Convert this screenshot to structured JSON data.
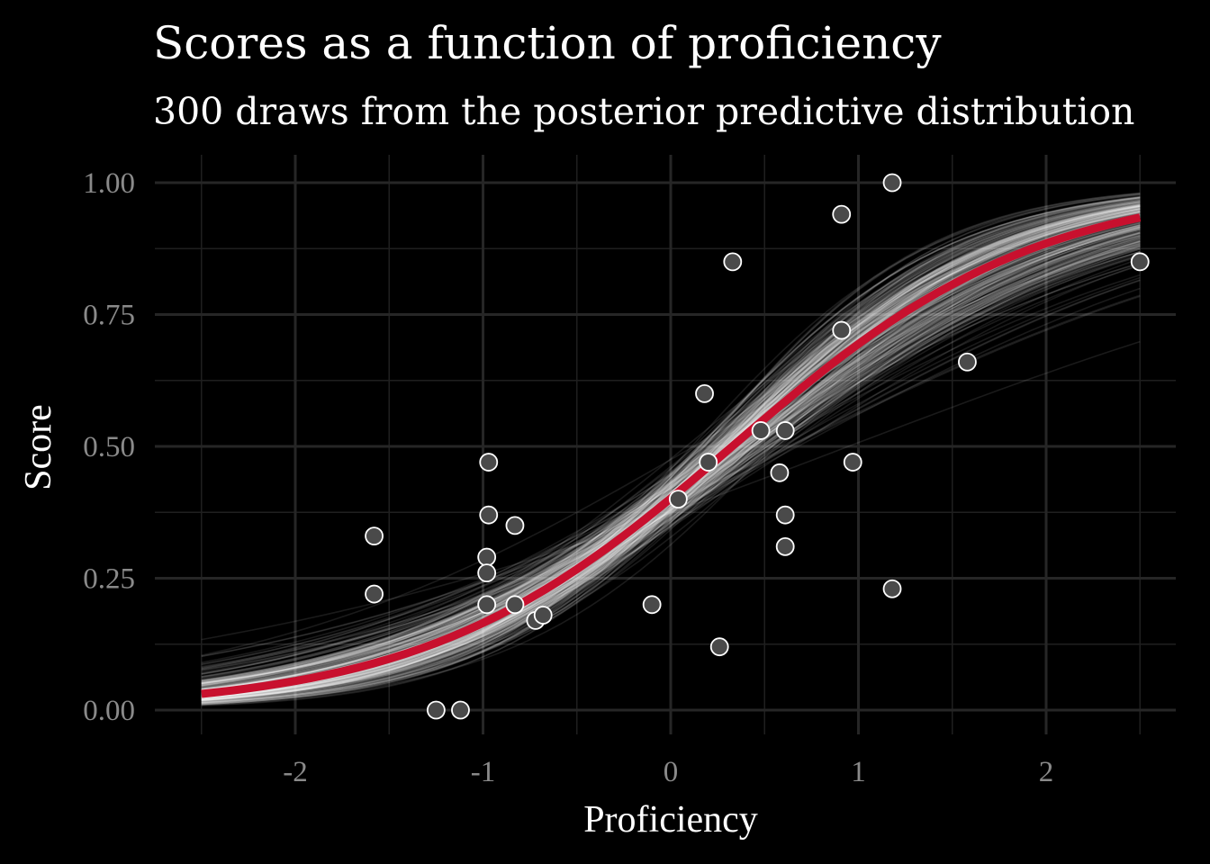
{
  "chart_data": {
    "type": "scatter",
    "title": "Scores as a function of proficiency",
    "subtitle": "300 draws from the posterior predictive distribution",
    "xlabel": "Proficiency",
    "ylabel": "Score",
    "xlim": [
      -2.6,
      2.7
    ],
    "ylim": [
      -0.04,
      1.05
    ],
    "x_ticks": [
      -2,
      -1,
      0,
      1,
      2
    ],
    "x_tick_labels": [
      "-2",
      "-1",
      "0",
      "1",
      "2"
    ],
    "y_ticks": [
      0,
      0.25,
      0.5,
      0.75,
      1.0
    ],
    "y_tick_labels": [
      "0.00",
      "0.25",
      "0.50",
      "0.75",
      "1.00"
    ],
    "grid": true,
    "legend": "none",
    "colors": {
      "background": "#000000",
      "grid": "#1f1f1f",
      "draws": "#ffffff",
      "mean_curve": "#c8102e",
      "points_fill": "#4a4a4a",
      "points_stroke": "#ffffff"
    },
    "draw_count": 300,
    "curve_x_range": [
      -2.5,
      2.5
    ],
    "mean_curve": {
      "intercept": -0.4,
      "slope": 1.22
    },
    "points": [
      {
        "x": -1.58,
        "y": 0.33
      },
      {
        "x": -1.58,
        "y": 0.22
      },
      {
        "x": -1.25,
        "y": 0.0
      },
      {
        "x": -1.12,
        "y": 0.0
      },
      {
        "x": -0.97,
        "y": 0.47
      },
      {
        "x": -0.97,
        "y": 0.37
      },
      {
        "x": -0.98,
        "y": 0.29
      },
      {
        "x": -0.98,
        "y": 0.26
      },
      {
        "x": -0.98,
        "y": 0.2
      },
      {
        "x": -0.83,
        "y": 0.35
      },
      {
        "x": -0.83,
        "y": 0.2
      },
      {
        "x": -0.72,
        "y": 0.17
      },
      {
        "x": -0.68,
        "y": 0.18
      },
      {
        "x": -0.1,
        "y": 0.2
      },
      {
        "x": 0.04,
        "y": 0.4
      },
      {
        "x": 0.18,
        "y": 0.6
      },
      {
        "x": 0.2,
        "y": 0.47
      },
      {
        "x": 0.26,
        "y": 0.12
      },
      {
        "x": 0.33,
        "y": 0.85
      },
      {
        "x": 0.48,
        "y": 0.53
      },
      {
        "x": 0.58,
        "y": 0.45
      },
      {
        "x": 0.61,
        "y": 0.53
      },
      {
        "x": 0.61,
        "y": 0.37
      },
      {
        "x": 0.61,
        "y": 0.31
      },
      {
        "x": 0.91,
        "y": 0.94
      },
      {
        "x": 0.91,
        "y": 0.72
      },
      {
        "x": 0.97,
        "y": 0.47
      },
      {
        "x": 1.18,
        "y": 1.0
      },
      {
        "x": 1.18,
        "y": 0.23
      },
      {
        "x": 1.58,
        "y": 0.66
      },
      {
        "x": 2.5,
        "y": 0.85
      }
    ]
  }
}
